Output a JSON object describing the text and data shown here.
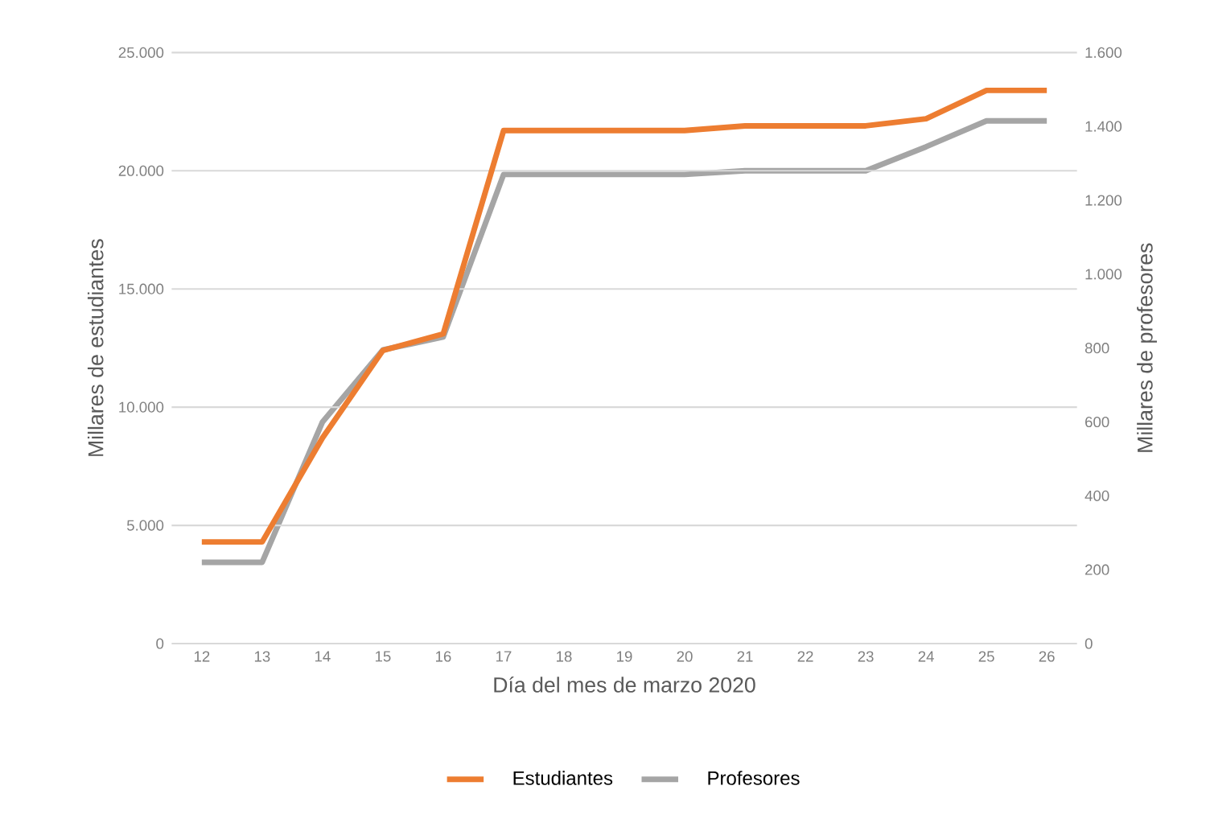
{
  "chart_data": {
    "type": "line",
    "xlabel": "Día del mes de marzo 2020",
    "ylabel": "Millares de estudiantes",
    "y2label": "Millares de profesores",
    "categories": [
      "12",
      "13",
      "14",
      "15",
      "16",
      "17",
      "18",
      "19",
      "20",
      "21",
      "22",
      "23",
      "24",
      "25",
      "26"
    ],
    "series": [
      {
        "name": "Estudiantes",
        "color": "#ed7d31",
        "values": [
          4300,
          4300,
          8700,
          12400,
          13100,
          21700,
          21700,
          21700,
          21700,
          21900,
          21900,
          21900,
          22200,
          23400,
          23400
        ]
      },
      {
        "name": "Profesores",
        "color": "#a5a5a5",
        "axis": "y2",
        "values": [
          220,
          220,
          600,
          795,
          830,
          1270,
          1270,
          1270,
          1270,
          1280,
          1280,
          1280,
          1345,
          1415,
          1415
        ]
      }
    ],
    "ylim": [
      0,
      25000
    ],
    "yticks": [
      {
        "value": 0,
        "label": "0"
      },
      {
        "value": 5000,
        "label": "5.000"
      },
      {
        "value": 10000,
        "label": "10.000"
      },
      {
        "value": 15000,
        "label": "15.000"
      },
      {
        "value": 20000,
        "label": "20.000"
      },
      {
        "value": 25000,
        "label": "25.000"
      }
    ],
    "y2lim": [
      0,
      1600
    ],
    "y2ticks": [
      {
        "value": 0,
        "label": "0"
      },
      {
        "value": 200,
        "label": "200"
      },
      {
        "value": 400,
        "label": "400"
      },
      {
        "value": 600,
        "label": "600"
      },
      {
        "value": 800,
        "label": "800"
      },
      {
        "value": 1000,
        "label": "1.000"
      },
      {
        "value": 1200,
        "label": "1.200"
      },
      {
        "value": 1400,
        "label": "1.400"
      },
      {
        "value": 1600,
        "label": "1.600"
      }
    ],
    "grid": "y",
    "legend": "bottom",
    "marker": "none",
    "line_style": "solid"
  }
}
